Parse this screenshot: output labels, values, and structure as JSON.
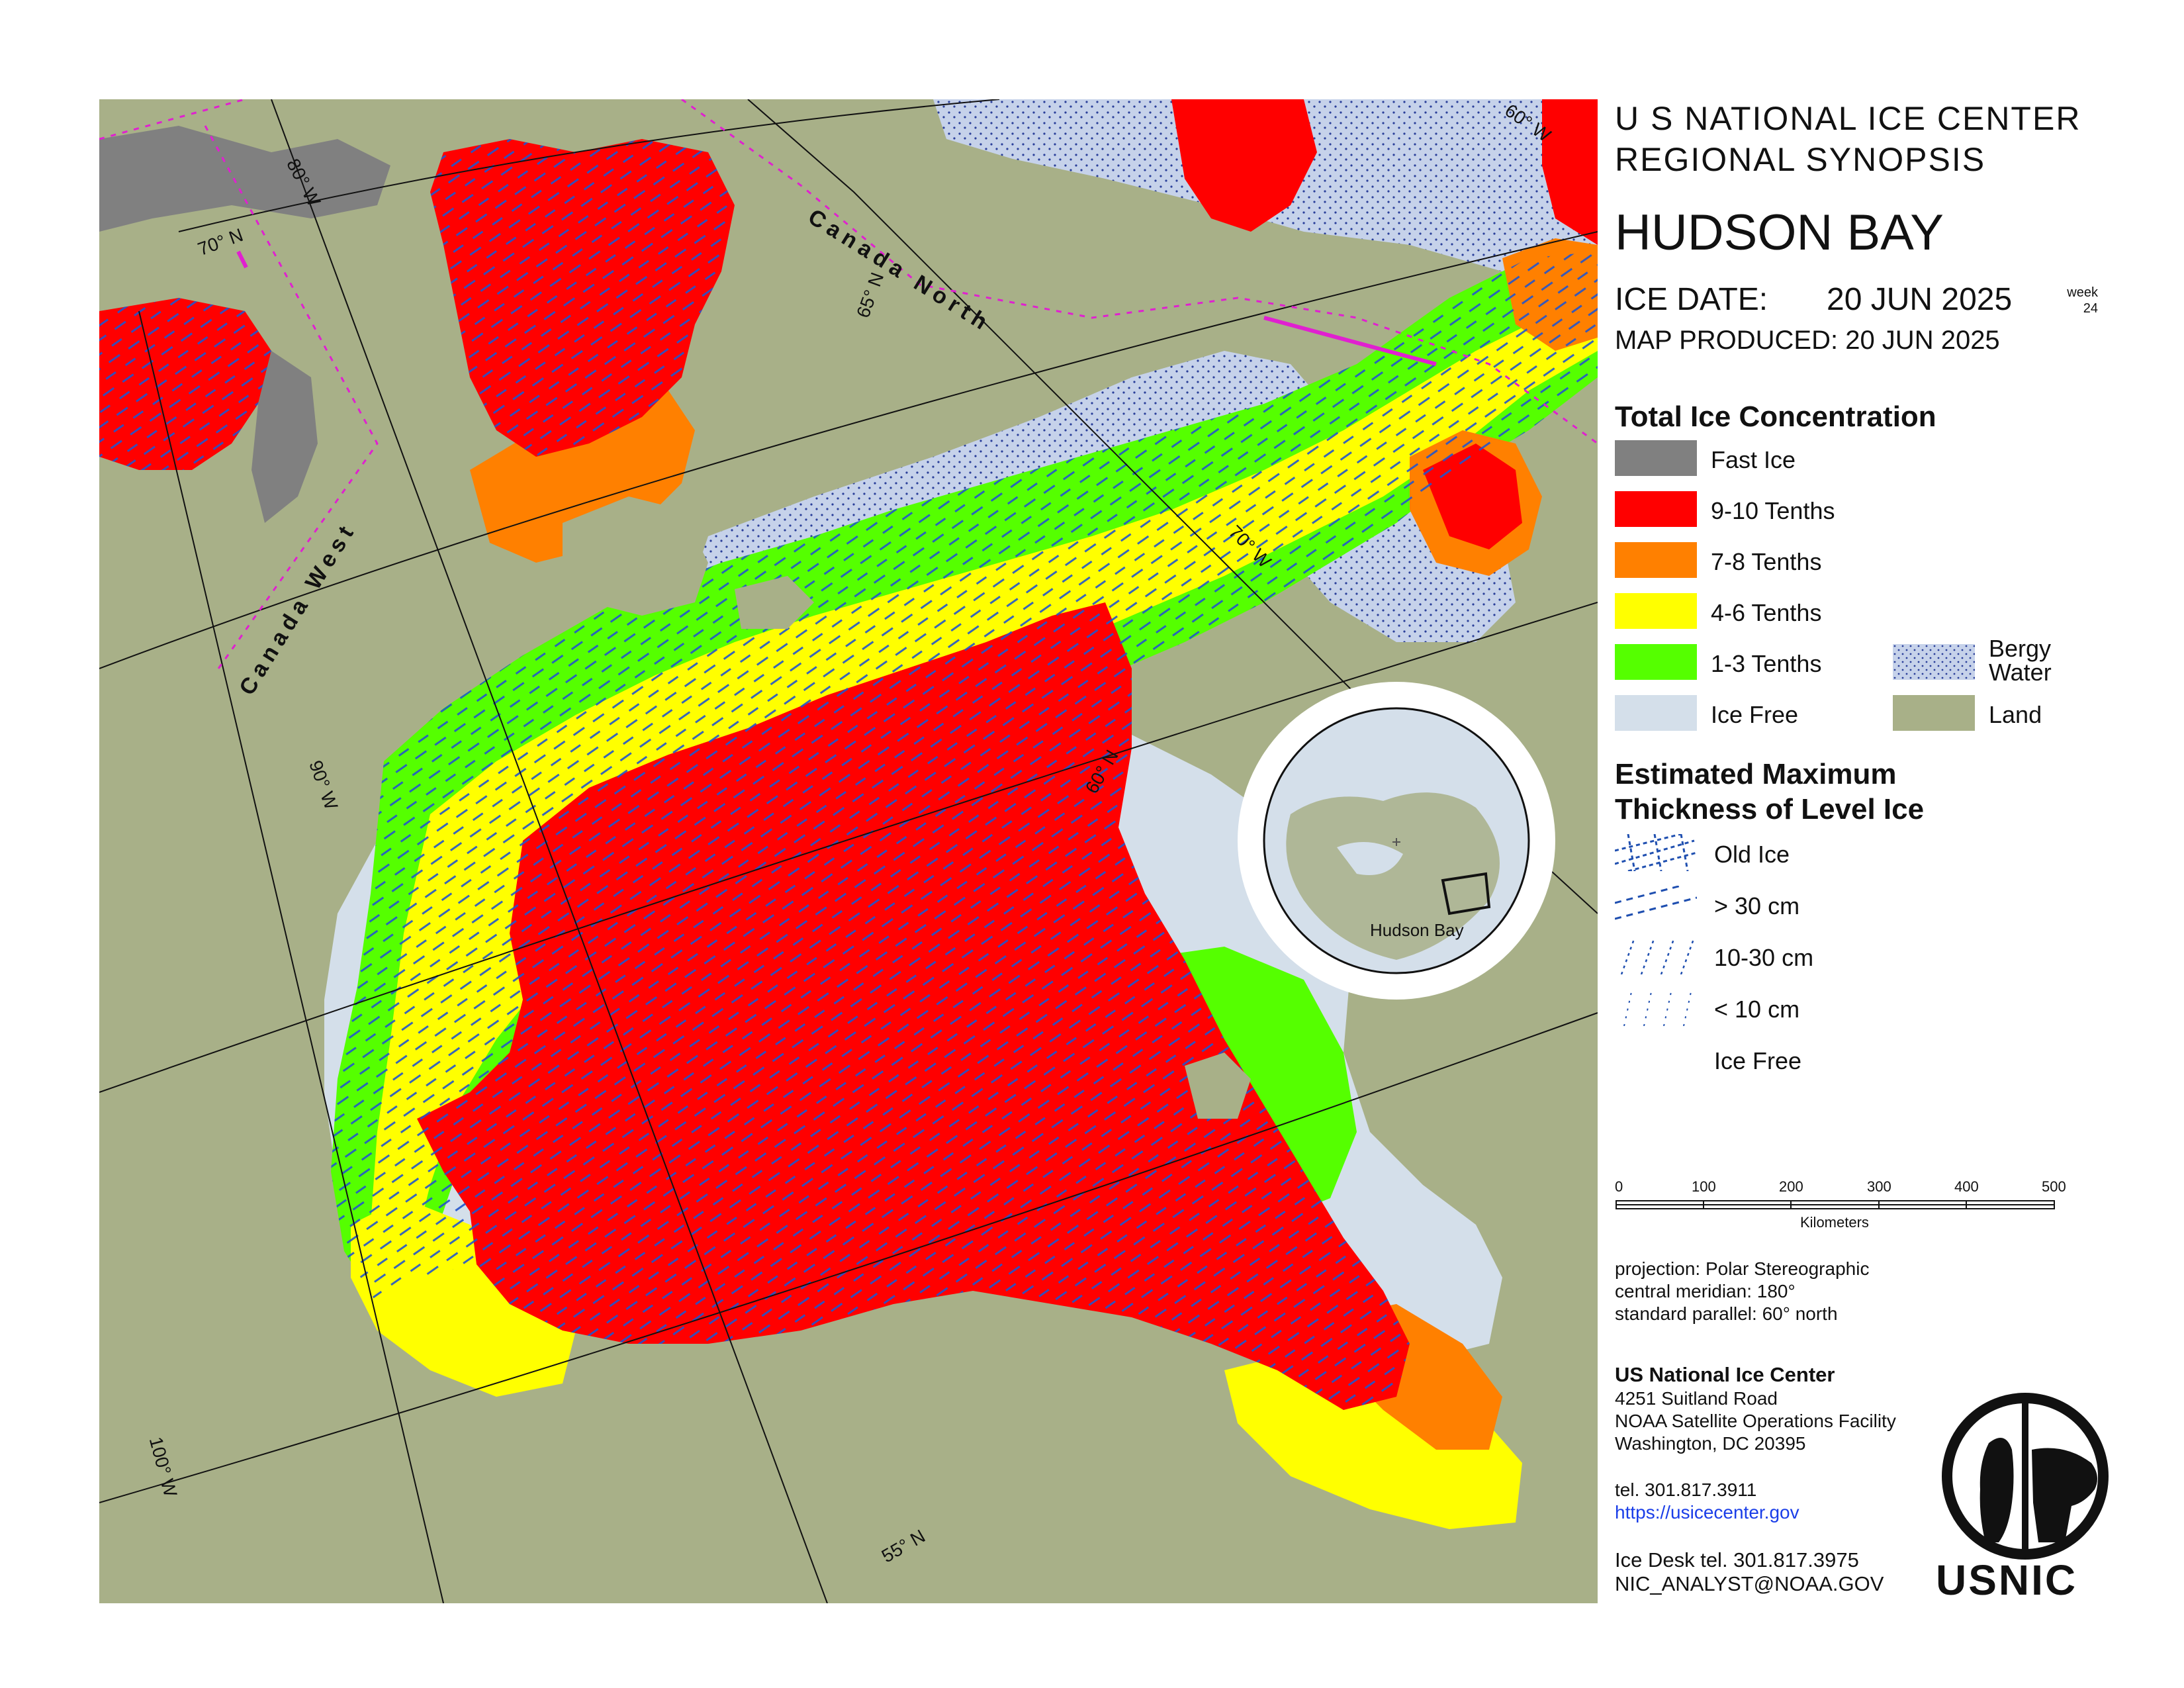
{
  "header": {
    "agency_line": "U S NATIONAL ICE CENTER",
    "synopsis_line": "REGIONAL SYNOPSIS",
    "region_title": "HUDSON BAY",
    "ice_date_label": "ICE DATE:",
    "ice_date_value": "20 JUN 2025",
    "week_label": "week",
    "week_number": "24",
    "map_produced": "MAP PRODUCED:  20 JUN 2025"
  },
  "concentration_legend": {
    "title": "Total Ice Concentration",
    "items": [
      {
        "label": "Fast Ice",
        "color": "#808080"
      },
      {
        "label": "9-10 Tenths",
        "color": "#ff0000"
      },
      {
        "label": "7-8 Tenths",
        "color": "#ff8000"
      },
      {
        "label": "4-6 Tenths",
        "color": "#ffff00"
      },
      {
        "label": "1-3 Tenths",
        "color": "#55ff00"
      },
      {
        "label": "Ice Free",
        "color": "#d4dfea"
      }
    ],
    "extra": [
      {
        "label_line1": "Bergy",
        "label_line2": "Water",
        "color": "#c6d2ea"
      },
      {
        "label": "Land",
        "color": "#a8b088"
      }
    ]
  },
  "thickness_legend": {
    "title_line1": "Estimated Maximum",
    "title_line2": "Thickness of Level Ice",
    "items": [
      "Old Ice",
      "> 30 cm",
      "10-30 cm",
      "< 10 cm",
      "Ice Free"
    ]
  },
  "scale_bar": {
    "ticks": [
      "0",
      "100",
      "200",
      "300",
      "400",
      "500"
    ],
    "unit": "Kilometers"
  },
  "projection": {
    "line1": "projection: Polar Stereographic",
    "line2": "central meridian: 180°",
    "line3": "standard parallel:  60° north"
  },
  "contact": {
    "org": "US National Ice Center",
    "address1": "4251 Suitland Road",
    "address2": "NOAA Satellite Operations Facility",
    "address3": "Washington, DC  20395",
    "tel": "tel. 301.817.3911",
    "url": "https://usicecenter.gov",
    "ice_desk": "Ice Desk tel. 301.817.3975",
    "email": "NIC_ANALYST@NOAA.GOV"
  },
  "logo": {
    "text": "USNIC"
  },
  "inset": {
    "label": "Hudson Bay"
  },
  "map_labels": {
    "lat_70": "70° N",
    "lat_65": "65° N",
    "lat_60": "60° N",
    "lat_55": "55° N",
    "lon_80": "80° W",
    "lon_90": "90° W",
    "lon_100": "100° W",
    "lon_70": "70° W",
    "lon_60": "60° W",
    "region_north": "Canada North",
    "region_west": "Canada West"
  },
  "colors": {
    "land": "#a8b088",
    "ice_free": "#d4dfea",
    "bergy": "#c6d2ea",
    "c910": "#ff0000",
    "c78": "#ff8000",
    "c46": "#ffff00",
    "c13": "#55ff00",
    "fast": "#808080",
    "hatch": "#2255cc",
    "region_line": "#e020d0"
  }
}
